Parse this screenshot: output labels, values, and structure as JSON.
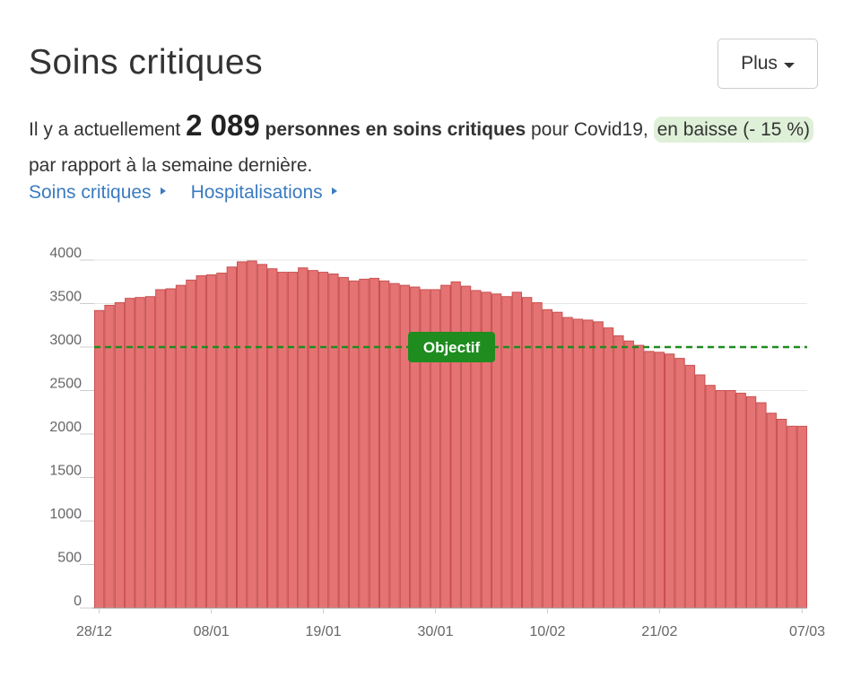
{
  "header": {
    "title": "Soins critiques",
    "more_button": "Plus"
  },
  "summary": {
    "prefix": "Il y a actuellement",
    "count": "2 089",
    "bold_text": "personnes en soins critiques",
    "middle": "pour Covid19,",
    "trend": "en baisse (- 15 %)",
    "suffix": "par rapport à la semaine dernière."
  },
  "links": [
    {
      "label": "Soins critiques"
    },
    {
      "label": "Hospitalisations"
    }
  ],
  "colors": {
    "bar_fill": "#e57373",
    "bar_stroke": "#c85050",
    "objective": "#1e8c1e",
    "link": "#3b7bbf",
    "trend_bg": "#dff0d8"
  },
  "chart_data": {
    "type": "bar",
    "title": "",
    "xlabel": "",
    "ylabel": "",
    "ylim": [
      0,
      4000
    ],
    "yticks": [
      0,
      500,
      1000,
      1500,
      2000,
      2500,
      3000,
      3500,
      4000
    ],
    "grid": true,
    "x_tick_labels": [
      "28/12",
      "08/01",
      "19/01",
      "30/01",
      "10/02",
      "21/02",
      "07/03"
    ],
    "x_tick_indices": [
      0,
      11,
      22,
      33,
      44,
      55,
      69
    ],
    "reference_line": {
      "label": "Objectif",
      "value": 3000,
      "style": "dashed"
    },
    "series": [
      {
        "values": [
          3420,
          3480,
          3510,
          3560,
          3570,
          3580,
          3660,
          3670,
          3710,
          3770,
          3820,
          3830,
          3850,
          3920,
          3980,
          3990,
          3950,
          3900,
          3860,
          3860,
          3910,
          3880,
          3860,
          3840,
          3800,
          3760,
          3780,
          3790,
          3760,
          3730,
          3710,
          3690,
          3660,
          3660,
          3710,
          3750,
          3700,
          3650,
          3630,
          3610,
          3580,
          3630,
          3570,
          3510,
          3430,
          3400,
          3340,
          3320,
          3310,
          3290,
          3220,
          3130,
          3070,
          3020,
          2950,
          2940,
          2920,
          2870,
          2790,
          2680,
          2560,
          2500,
          2500,
          2470,
          2430,
          2360,
          2240,
          2170,
          2090,
          2089
        ]
      }
    ]
  }
}
